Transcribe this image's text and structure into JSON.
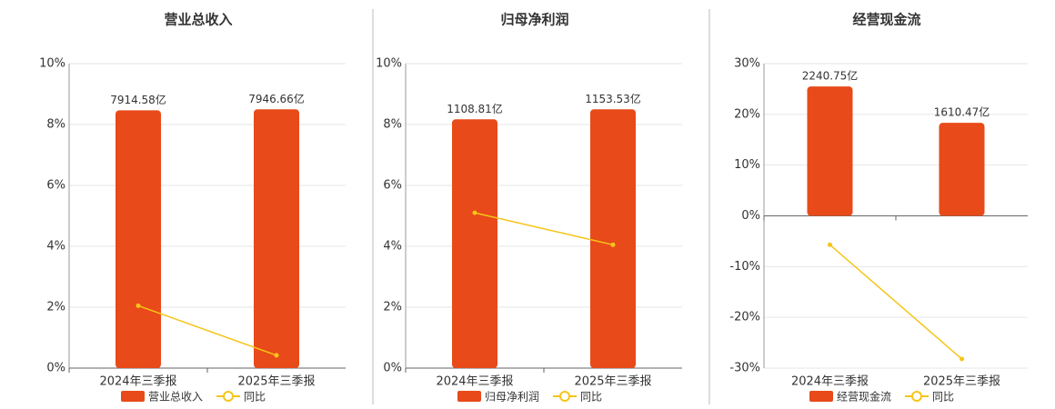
{
  "chart_data": [
    {
      "type": "bar-line",
      "title": "营业总收入",
      "categories": [
        "2024年三季报",
        "2025年三季报"
      ],
      "series": [
        {
          "name": "营业总收入",
          "color": "#e84a19",
          "values": [
            7914.58,
            7946.66
          ],
          "value_labels": [
            "7914.58亿",
            "7946.66亿"
          ]
        },
        {
          "name": "同比",
          "color": "#f5c518",
          "values": [
            2.05,
            0.42
          ]
        }
      ],
      "ylim": [
        0,
        10
      ],
      "yticks": [
        {
          "value": 0,
          "label": "0%"
        },
        {
          "value": 2,
          "label": "2%"
        },
        {
          "value": 4,
          "label": "4%"
        },
        {
          "value": 6,
          "label": "6%"
        },
        {
          "value": 8,
          "label": "8%"
        },
        {
          "value": 10,
          "label": "10%"
        }
      ],
      "grid": true
    },
    {
      "type": "bar-line",
      "title": "归母净利润",
      "categories": [
        "2024年三季报",
        "2025年三季报"
      ],
      "series": [
        {
          "name": "归母净利润",
          "color": "#e84a19",
          "values": [
            1108.81,
            1153.53
          ],
          "value_labels": [
            "1108.81亿",
            "1153.53亿"
          ]
        },
        {
          "name": "同比",
          "color": "#f5c518",
          "values": [
            5.1,
            4.05
          ]
        }
      ],
      "ylim": [
        0,
        10
      ],
      "yticks": [
        {
          "value": 0,
          "label": "0%"
        },
        {
          "value": 2,
          "label": "2%"
        },
        {
          "value": 4,
          "label": "4%"
        },
        {
          "value": 6,
          "label": "6%"
        },
        {
          "value": 8,
          "label": "8%"
        },
        {
          "value": 10,
          "label": "10%"
        }
      ],
      "grid": true
    },
    {
      "type": "bar-line",
      "title": "经营现金流",
      "categories": [
        "2024年三季报",
        "2025年三季报"
      ],
      "series": [
        {
          "name": "经营现金流",
          "color": "#e84a19",
          "values": [
            2240.75,
            1610.47
          ],
          "value_labels": [
            "2240.75亿",
            "1610.47亿"
          ]
        },
        {
          "name": "同比",
          "color": "#f5c518",
          "values": [
            -5.7,
            -28.2
          ]
        }
      ],
      "ylim": [
        -30,
        30
      ],
      "yticks": [
        {
          "value": -30,
          "label": "-30%"
        },
        {
          "value": -20,
          "label": "-20%"
        },
        {
          "value": -10,
          "label": "-10%"
        },
        {
          "value": 0,
          "label": "0%"
        },
        {
          "value": 10,
          "label": "10%"
        },
        {
          "value": 20,
          "label": "20%"
        },
        {
          "value": 30,
          "label": "30%"
        }
      ],
      "grid": true
    }
  ]
}
